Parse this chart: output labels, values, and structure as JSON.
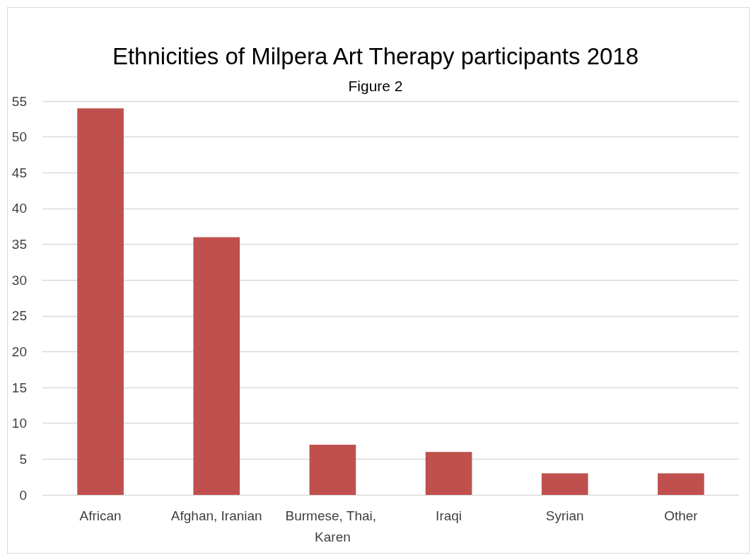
{
  "chart_data": {
    "type": "bar",
    "title": "Ethnicities of Milpera Art Therapy participants 2018",
    "subtitle": "Figure 2",
    "categories": [
      "African",
      "Afghan, Iranian",
      "Burmese, Thai, Karen",
      "Iraqi",
      "Syrian",
      "Other"
    ],
    "values": [
      54,
      36,
      7,
      6,
      3,
      3
    ],
    "color": "#c0504d",
    "ylim": [
      0,
      55
    ],
    "yticks": [
      0,
      5,
      10,
      15,
      20,
      25,
      30,
      35,
      40,
      45,
      50,
      55
    ],
    "grid": "y"
  }
}
